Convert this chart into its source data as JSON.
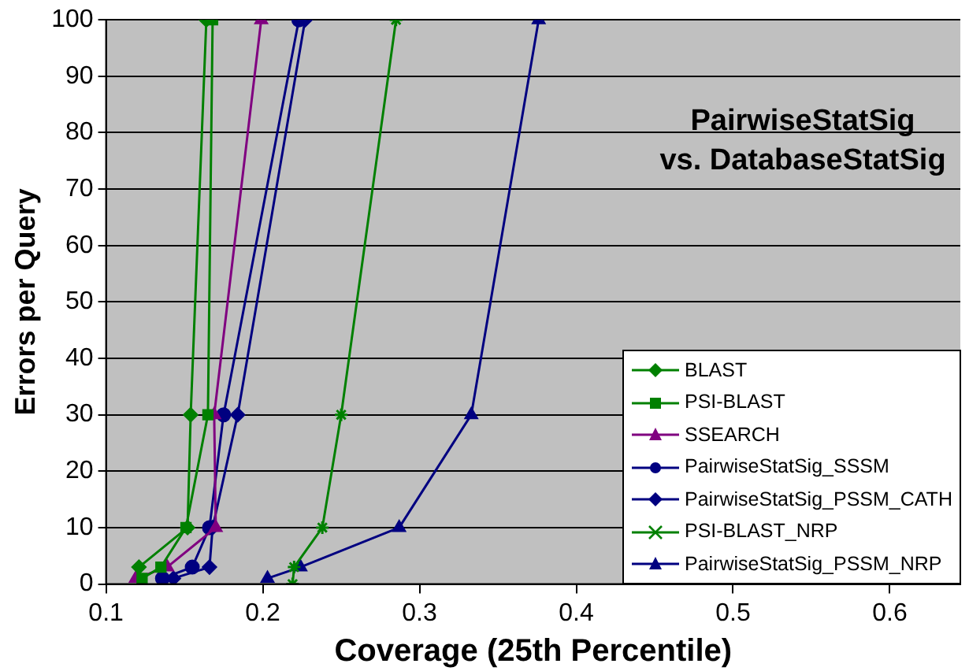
{
  "chart_data": {
    "type": "line",
    "title": "PairwiseStatSig\nvs. DatabaseStatSig",
    "xlabel": "Coverage (25th Percentile)",
    "ylabel": "Errors per Query",
    "xlim": [
      0.1,
      0.645
    ],
    "xticks": [
      0.1,
      0.2,
      0.3,
      0.4,
      0.5,
      0.6
    ],
    "ylim": [
      0,
      100
    ],
    "yticks": [
      0,
      10,
      20,
      30,
      40,
      50,
      60,
      70,
      80,
      90,
      100
    ],
    "grid": "y",
    "legend": "bottom right",
    "line_style": "solid",
    "series": [
      {
        "name": "BLAST",
        "color": "#008000",
        "marker": "diamond",
        "x": [
          0.121,
          0.152,
          0.154,
          0.164
        ],
        "values": [
          3,
          10,
          30,
          100
        ]
      },
      {
        "name": "PSI-BLAST",
        "color": "#008000",
        "marker": "square",
        "x": [
          0.123,
          0.135,
          0.151,
          0.165,
          0.168
        ],
        "values": [
          1,
          3,
          10,
          30,
          100
        ]
      },
      {
        "name": "SSEARCH",
        "color": "#800080",
        "marker": "triangle",
        "x": [
          0.119,
          0.139,
          0.17,
          0.169,
          0.199
        ],
        "values": [
          1,
          3,
          10,
          30,
          100
        ]
      },
      {
        "name": "PairwiseStatSig_SSSM",
        "color": "#000080",
        "marker": "circle",
        "x": [
          0.136,
          0.155,
          0.166,
          0.175,
          0.223
        ],
        "values": [
          1,
          3,
          10,
          30,
          100
        ]
      },
      {
        "name": "PairwiseStatSig_PSSM_CATH",
        "color": "#000080",
        "marker": "diamond",
        "x": [
          0.143,
          0.166,
          0.168,
          0.184,
          0.227
        ],
        "values": [
          1,
          3,
          10,
          30,
          100
        ]
      },
      {
        "name": "PSI-BLAST_NRP",
        "color": "#008000",
        "marker": "cross",
        "x": [
          0.219,
          0.22,
          0.238,
          0.25,
          0.285
        ],
        "values": [
          0,
          3,
          10,
          30,
          100
        ]
      },
      {
        "name": "PairwiseStatSig_PSSM_NRP",
        "color": "#000080",
        "marker": "triangle",
        "x": [
          0.203,
          0.224,
          0.287,
          0.333,
          0.376
        ],
        "values": [
          1,
          3,
          10,
          30,
          100
        ]
      }
    ]
  }
}
